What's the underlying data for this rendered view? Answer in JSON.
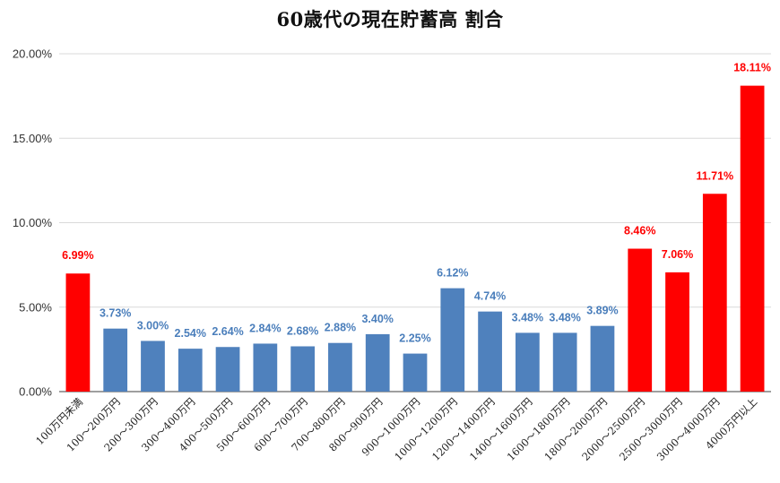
{
  "chart_data": {
    "type": "bar",
    "title": "60歳代の現在貯蓄高 割合",
    "xlabel": "",
    "ylabel": "",
    "ylim": [
      0,
      20
    ],
    "yticks": [
      "0.00%",
      "5.00%",
      "10.00%",
      "15.00%",
      "20.00%"
    ],
    "grid": true,
    "categories": [
      "100万円未満",
      "100～200万円",
      "200～300万円",
      "300～400万円",
      "400～500万円",
      "500～600万円",
      "600～700万円",
      "700～800万円",
      "800～900万円",
      "900～1000万円",
      "1000～1200万円",
      "1200～1400万円",
      "1400～1600万円",
      "1600～1800万円",
      "1800～2000万円",
      "2000～2500万円",
      "2500～3000万円",
      "3000～4000万円",
      "4000万円以上"
    ],
    "values": [
      6.99,
      3.73,
      3.0,
      2.54,
      2.64,
      2.84,
      2.68,
      2.88,
      3.4,
      2.25,
      6.12,
      4.74,
      3.48,
      3.48,
      3.89,
      8.46,
      7.06,
      11.71,
      18.11
    ],
    "labels": [
      "6.99%",
      "3.73%",
      "3.00%",
      "2.54%",
      "2.64%",
      "2.84%",
      "2.68%",
      "2.88%",
      "3.40%",
      "2.25%",
      "6.12%",
      "4.74%",
      "3.48%",
      "3.48%",
      "3.89%",
      "8.46%",
      "7.06%",
      "11.71%",
      "18.11%"
    ],
    "highlighted": [
      true,
      false,
      false,
      false,
      false,
      false,
      false,
      false,
      false,
      false,
      false,
      false,
      false,
      false,
      false,
      true,
      true,
      true,
      true
    ],
    "colors": {
      "normal_bar": "#4f81bd",
      "highlight_bar": "#ff0000",
      "normal_label": "#4a7ebb",
      "highlight_label": "#ff0000",
      "grid": "#d9d9d9",
      "axis": "#666666"
    }
  }
}
